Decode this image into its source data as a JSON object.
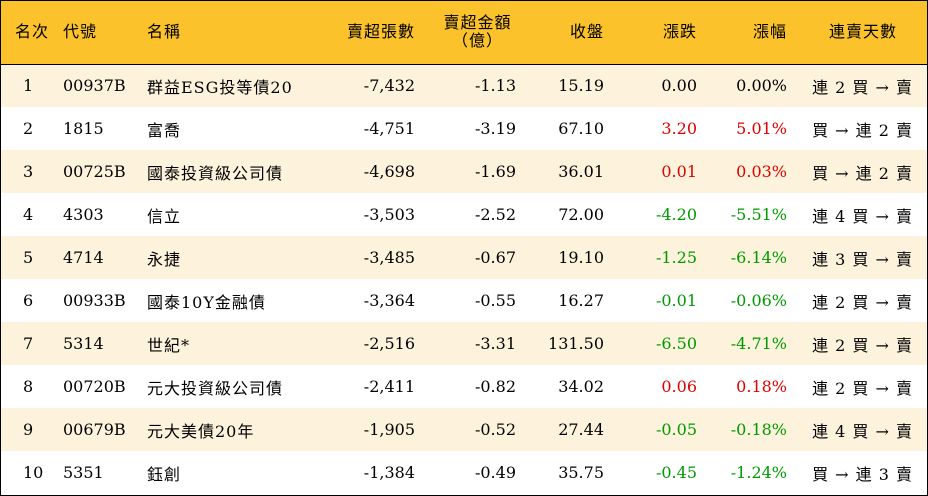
{
  "columns": {
    "rank": "名次",
    "code": "代號",
    "name": "名稱",
    "net_sell_lots": "賣超張數",
    "net_sell_amount_line1": "賣超金額",
    "net_sell_amount_line2": "（億）",
    "close": "收盤",
    "change": "漲跌",
    "change_pct": "漲幅",
    "consecutive_days": "連賣天數"
  },
  "colors": {
    "header_bg": "#fcc22c",
    "row_alt_bg": "#fdf3dc",
    "up": "#e00000",
    "down": "#009a00"
  },
  "rows": [
    {
      "rank": "1",
      "code": "00937B",
      "name": "群益ESG投等債20",
      "lots": "-7,432",
      "amount": "-1.13",
      "close": "15.19",
      "change": "0.00",
      "pct": "0.00%",
      "days": "連 2 買 → 賣",
      "trend": "flat"
    },
    {
      "rank": "2",
      "code": "1815",
      "name": "富喬",
      "lots": "-4,751",
      "amount": "-3.19",
      "close": "67.10",
      "change": "3.20",
      "pct": "5.01%",
      "days": "買 → 連 2 賣",
      "trend": "up"
    },
    {
      "rank": "3",
      "code": "00725B",
      "name": "國泰投資級公司債",
      "lots": "-4,698",
      "amount": "-1.69",
      "close": "36.01",
      "change": "0.01",
      "pct": "0.03%",
      "days": "買 → 連 2 賣",
      "trend": "up"
    },
    {
      "rank": "4",
      "code": "4303",
      "name": "信立",
      "lots": "-3,503",
      "amount": "-2.52",
      "close": "72.00",
      "change": "-4.20",
      "pct": "-5.51%",
      "days": "連 4 買 → 賣",
      "trend": "down"
    },
    {
      "rank": "5",
      "code": "4714",
      "name": "永捷",
      "lots": "-3,485",
      "amount": "-0.67",
      "close": "19.10",
      "change": "-1.25",
      "pct": "-6.14%",
      "days": "連 3 買 → 賣",
      "trend": "down"
    },
    {
      "rank": "6",
      "code": "00933B",
      "name": "國泰10Y金融債",
      "lots": "-3,364",
      "amount": "-0.55",
      "close": "16.27",
      "change": "-0.01",
      "pct": "-0.06%",
      "days": "連 2 買 → 賣",
      "trend": "down"
    },
    {
      "rank": "7",
      "code": "5314",
      "name": "世紀*",
      "lots": "-2,516",
      "amount": "-3.31",
      "close": "131.50",
      "change": "-6.50",
      "pct": "-4.71%",
      "days": "連 2 買 → 賣",
      "trend": "down"
    },
    {
      "rank": "8",
      "code": "00720B",
      "name": "元大投資級公司債",
      "lots": "-2,411",
      "amount": "-0.82",
      "close": "34.02",
      "change": "0.06",
      "pct": "0.18%",
      "days": "連 2 買 → 賣",
      "trend": "up"
    },
    {
      "rank": "9",
      "code": "00679B",
      "name": "元大美債20年",
      "lots": "-1,905",
      "amount": "-0.52",
      "close": "27.44",
      "change": "-0.05",
      "pct": "-0.18%",
      "days": "連 4 買 → 賣",
      "trend": "down"
    },
    {
      "rank": "10",
      "code": "5351",
      "name": "鈺創",
      "lots": "-1,384",
      "amount": "-0.49",
      "close": "35.75",
      "change": "-0.45",
      "pct": "-1.24%",
      "days": "買 → 連 3 賣",
      "trend": "down"
    }
  ]
}
